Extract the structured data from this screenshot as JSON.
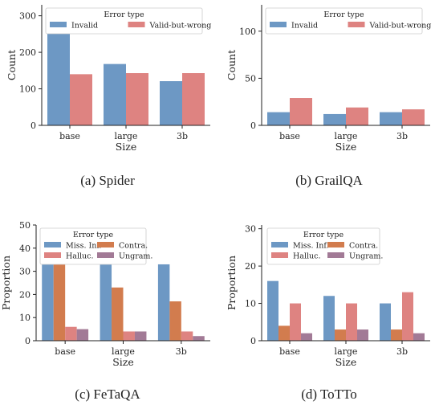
{
  "chart_data": [
    {
      "type": "bar",
      "caption": "(a)  Spider",
      "xlabel": "Size",
      "ylabel": "Count",
      "categories": [
        "base",
        "large",
        "3b"
      ],
      "ylim": [
        0,
        330
      ],
      "yticks": [
        0,
        100,
        200,
        300
      ],
      "legend_title": "Error type",
      "legend_position": "top",
      "legend_columns": 2,
      "series": [
        {
          "name": "Invalid",
          "color": "#6d98c4",
          "values": [
            268,
            168,
            121
          ]
        },
        {
          "name": "Valid-but-wrong",
          "color": "#de8381",
          "values": [
            140,
            143,
            143
          ]
        }
      ]
    },
    {
      "type": "bar",
      "caption": "(b)  GrailQA",
      "xlabel": "Size",
      "ylabel": "Count",
      "categories": [
        "base",
        "large",
        "3b"
      ],
      "ylim": [
        0,
        128
      ],
      "yticks": [
        0,
        50,
        100
      ],
      "legend_title": "Error type",
      "legend_position": "top",
      "legend_columns": 2,
      "series": [
        {
          "name": "Invalid",
          "color": "#6d98c4",
          "values": [
            14,
            12,
            14
          ]
        },
        {
          "name": "Valid-but-wrong",
          "color": "#de8381",
          "values": [
            29,
            19,
            17
          ]
        }
      ]
    },
    {
      "type": "bar",
      "caption": "(c)  FeTaQA",
      "xlabel": "Size",
      "ylabel": "Proportion",
      "categories": [
        "base",
        "large",
        "3b"
      ],
      "ylim": [
        0,
        50
      ],
      "yticks": [
        0,
        10,
        20,
        30,
        40,
        50
      ],
      "legend_title": "Error type",
      "legend_position": "top",
      "legend_columns": 2,
      "series": [
        {
          "name": "Miss. Inf.",
          "color": "#6d98c4",
          "values": [
            36,
            33,
            33
          ]
        },
        {
          "name": "Contra.",
          "color": "#d27c4e",
          "values": [
            36,
            23,
            17
          ]
        },
        {
          "name": "Halluc.",
          "color": "#de8381",
          "values": [
            6,
            4,
            4
          ]
        },
        {
          "name": "Ungram.",
          "color": "#a27a96",
          "values": [
            5,
            4,
            2
          ]
        }
      ]
    },
    {
      "type": "bar",
      "caption": "(d)  ToTTo",
      "xlabel": "Size",
      "ylabel": "Proportion",
      "categories": [
        "base",
        "large",
        "3b"
      ],
      "ylim": [
        0,
        31
      ],
      "yticks": [
        0,
        10,
        20,
        30
      ],
      "legend_title": "Error type",
      "legend_position": "top",
      "legend_columns": 2,
      "series": [
        {
          "name": "Miss. Inf.",
          "color": "#6d98c4",
          "values": [
            16,
            12,
            10
          ]
        },
        {
          "name": "Contra.",
          "color": "#d27c4e",
          "values": [
            4,
            3,
            3
          ]
        },
        {
          "name": "Halluc.",
          "color": "#de8381",
          "values": [
            10,
            10,
            13
          ]
        },
        {
          "name": "Ungram.",
          "color": "#a27a96",
          "values": [
            2,
            3,
            2
          ]
        }
      ]
    }
  ]
}
